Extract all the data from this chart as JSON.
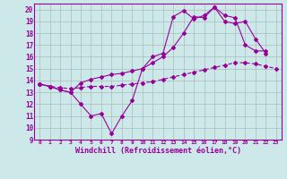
{
  "background_color": "#cce8e8",
  "grid_color": "#aabbbb",
  "line_color": "#990099",
  "xlim": [
    -0.5,
    23.5
  ],
  "ylim": [
    9,
    20.5
  ],
  "xticks": [
    0,
    1,
    2,
    3,
    4,
    5,
    6,
    7,
    8,
    9,
    10,
    11,
    12,
    13,
    14,
    15,
    16,
    17,
    18,
    19,
    20,
    21,
    22,
    23
  ],
  "yticks": [
    9,
    10,
    11,
    12,
    13,
    14,
    15,
    16,
    17,
    18,
    19,
    20
  ],
  "xlabel": "Windchill (Refroidissement éolien,°C)",
  "s1x": [
    0,
    1,
    2,
    3,
    4,
    5,
    6,
    7,
    8,
    9,
    10,
    11,
    12,
    13,
    14,
    15,
    16,
    17,
    18,
    19,
    20,
    21,
    22
  ],
  "s1y": [
    13.7,
    13.5,
    13.2,
    13.0,
    12.0,
    11.0,
    11.2,
    9.5,
    11.0,
    12.3,
    15.0,
    16.0,
    16.3,
    19.4,
    19.9,
    19.2,
    19.5,
    20.2,
    19.5,
    19.3,
    17.0,
    16.5,
    16.5
  ],
  "s2x": [
    0,
    1,
    2,
    3,
    4,
    5,
    6,
    7,
    8,
    9,
    10,
    11,
    12,
    13,
    14,
    15,
    16,
    17,
    18,
    19,
    20,
    21,
    22
  ],
  "s2y": [
    13.7,
    13.5,
    13.2,
    13.0,
    13.8,
    14.1,
    14.3,
    14.5,
    14.6,
    14.8,
    15.0,
    15.5,
    16.0,
    16.8,
    18.0,
    19.4,
    19.3,
    20.2,
    19.0,
    18.8,
    19.0,
    17.5,
    16.3
  ],
  "s3x": [
    0,
    1,
    2,
    3,
    4,
    5,
    6,
    7,
    8,
    9,
    10,
    11,
    12,
    13,
    14,
    15,
    16,
    17,
    18,
    19,
    20,
    21,
    22,
    23
  ],
  "s3y": [
    13.7,
    13.5,
    13.4,
    13.3,
    13.4,
    13.5,
    13.5,
    13.5,
    13.6,
    13.7,
    13.8,
    13.9,
    14.1,
    14.3,
    14.5,
    14.7,
    14.9,
    15.1,
    15.3,
    15.5,
    15.5,
    15.4,
    15.2,
    15.0
  ],
  "marker": "D",
  "ms": 2.0,
  "lw": 0.8
}
